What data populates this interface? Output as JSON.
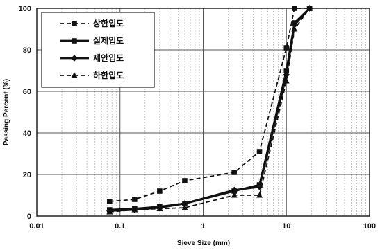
{
  "chart_data": {
    "type": "line",
    "title": "",
    "xlabel": "Sieve Size (mm)",
    "ylabel": "Passing Percent (%)",
    "x_scale": "log",
    "xlim": [
      0.01,
      100
    ],
    "ylim": [
      0,
      100
    ],
    "x_ticks": [
      "0.01",
      "0.1",
      "1",
      "10",
      "100"
    ],
    "y_ticks": [
      "0",
      "20",
      "40",
      "60",
      "80",
      "100"
    ],
    "grid": true,
    "legend_position": "top-left",
    "series": [
      {
        "name": "상한입도",
        "marker": "square",
        "dash": "dashed",
        "x": [
          0.075,
          0.15,
          0.3,
          0.6,
          2.36,
          4.75,
          10,
          12.5,
          19
        ],
        "y": [
          7,
          8,
          12,
          17,
          21,
          31,
          81,
          100,
          100
        ]
      },
      {
        "name": "실제입도",
        "marker": "square",
        "dash": "solid",
        "x": [
          0.075,
          0.15,
          0.3,
          0.6,
          2.36,
          4.75,
          10,
          12.5,
          19
        ],
        "y": [
          3,
          3.5,
          4.5,
          6,
          12,
          15,
          70,
          93,
          100
        ]
      },
      {
        "name": "제안입도",
        "marker": "diamond",
        "dash": "solid",
        "x": [
          0.075,
          0.15,
          0.3,
          0.6,
          2.36,
          4.75,
          10,
          12.5,
          19
        ],
        "y": [
          2.5,
          3,
          4,
          6,
          12.5,
          14,
          68,
          92,
          100
        ]
      },
      {
        "name": "하한입도",
        "marker": "triangle",
        "dash": "dashed",
        "x": [
          0.075,
          0.15,
          0.3,
          0.6,
          2.36,
          4.75,
          10,
          12.5,
          19
        ],
        "y": [
          2,
          3,
          3.5,
          4,
          10,
          10,
          65,
          90,
          100
        ]
      }
    ]
  }
}
